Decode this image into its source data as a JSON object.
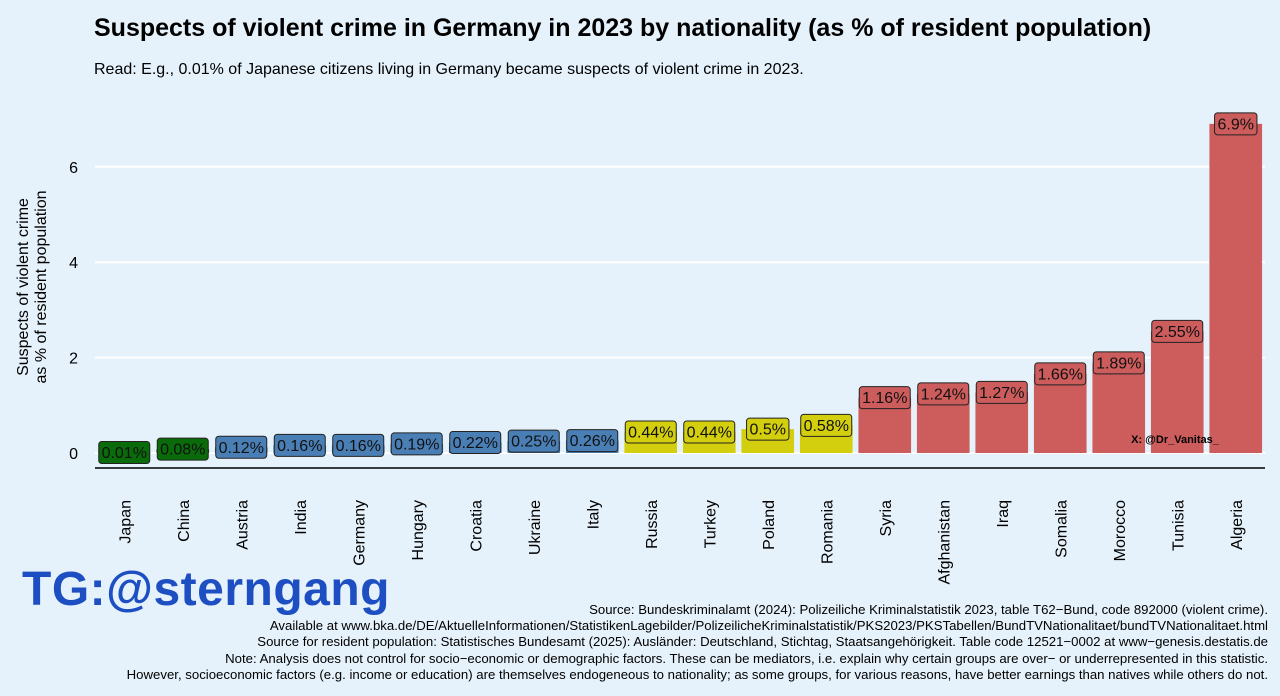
{
  "title": "Suspects of violent crime in Germany in 2023 by nationality (as % of resident population)",
  "subtitle": "Read: E.g., 0.01% of Japanese citizens living in Germany became suspects of violent crime in 2023.",
  "chart_data": {
    "type": "bar",
    "ylabel_lines": [
      "Suspects of violent crime",
      "as % of resident population"
    ],
    "xlabel": "",
    "ylim": [
      0,
      7.0
    ],
    "yticks": [
      0,
      2,
      4,
      6
    ],
    "grid": true,
    "categories": [
      "Japan",
      "China",
      "Austria",
      "India",
      "Germany",
      "Hungary",
      "Croatia",
      "Ukraine",
      "Italy",
      "Russia",
      "Turkey",
      "Poland",
      "Romania",
      "Syria",
      "Afghanistan",
      "Iraq",
      "Somalia",
      "Morocco",
      "Tunisia",
      "Algeria"
    ],
    "values": [
      0.01,
      0.08,
      0.12,
      0.16,
      0.16,
      0.19,
      0.22,
      0.25,
      0.26,
      0.44,
      0.44,
      0.5,
      0.58,
      1.16,
      1.24,
      1.27,
      1.66,
      1.89,
      2.55,
      6.9
    ],
    "labels": [
      "0.01%",
      "0.08%",
      "0.12%",
      "0.16%",
      "0.16%",
      "0.19%",
      "0.22%",
      "0.25%",
      "0.26%",
      "0.44%",
      "0.44%",
      "0.5%",
      "0.58%",
      "1.16%",
      "1.24%",
      "1.27%",
      "1.66%",
      "1.89%",
      "2.55%",
      "6.9%"
    ],
    "groups": [
      "green",
      "green",
      "blue",
      "blue",
      "blue",
      "blue",
      "blue",
      "blue",
      "blue",
      "yellow",
      "yellow",
      "yellow",
      "yellow",
      "red",
      "red",
      "red",
      "red",
      "red",
      "red",
      "red"
    ],
    "colors": {
      "green": "#0a6b0a",
      "blue": "#4a7fb5",
      "yellow": "#d4cf0e",
      "red": "#cd5c5c",
      "grid": "#ffffff",
      "background": "#e6f2fb"
    },
    "annotation": "X: @Dr_Vanitas_"
  },
  "watermark": "TG:@sterngang",
  "footer": [
    "Source: Bundeskriminalamt (2024): Polizeiliche Kriminalstatistik 2023, table T62−Bund, code 892000 (violent crime).",
    "Available at www.bka.de/DE/AktuelleInformationen/StatistikenLagebilder/PolizeilicheKriminalstatistik/PKS2023/PKSTabellen/BundTVNationalitaet/bundTVNationalitaet.html",
    "Source for resident population: Statistisches Bundesamt (2025): Ausländer: Deutschland, Stichtag, Staatsangehörigkeit. Table code 12521−0002 at www−genesis.destatis.de",
    "Note: Analysis does not control for socio−economic or demographic factors. These can be mediators, i.e. explain why certain groups are over− or underrepresented in this statistic.",
    "However, socioeconomic factors (e.g. income or education) are themselves endogeneous to nationality; as some groups, for various reasons, have better earnings than natives while others do not."
  ]
}
